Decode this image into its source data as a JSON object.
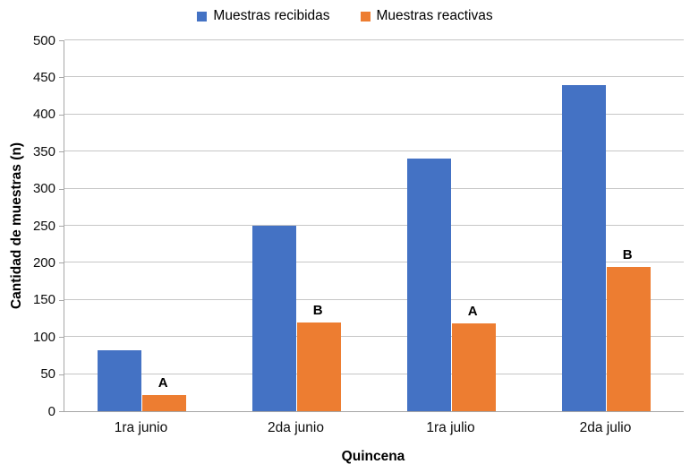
{
  "chart_data": {
    "type": "bar",
    "title": "",
    "xlabel": "Quincena",
    "ylabel": "Cantidad de muestras (n)",
    "categories": [
      "1ra junio",
      "2da junio",
      "1ra julio",
      "2da julio"
    ],
    "series": [
      {
        "name": "Muestras recibidas",
        "color": "#4472C4",
        "values": [
          82,
          250,
          340,
          440
        ],
        "point_labels": null
      },
      {
        "name": "Muestras reactivas",
        "color": "#ED7D31",
        "values": [
          22,
          120,
          118,
          195
        ],
        "point_labels": [
          "A",
          "B",
          "A",
          "B"
        ]
      }
    ],
    "ylim": [
      0,
      500
    ],
    "ytick_step": 50,
    "grid": true,
    "legend_position": "top",
    "axis_color": "#a6a6a6",
    "gridline_color": "#c6c6c6"
  }
}
